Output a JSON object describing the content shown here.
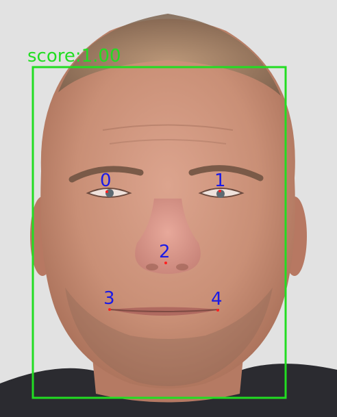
{
  "image": {
    "subject": "photo of a man's face",
    "background_color": "#e2e2e2"
  },
  "detection": {
    "score_label": "score:1.00",
    "box_color": "#22dd22",
    "landmark_color": "#ff2020",
    "landmark_label_color": "#1a1ae6",
    "landmarks": [
      {
        "id": "0",
        "name": "right-eye"
      },
      {
        "id": "1",
        "name": "left-eye"
      },
      {
        "id": "2",
        "name": "nose-tip"
      },
      {
        "id": "3",
        "name": "mouth-right-corner"
      },
      {
        "id": "4",
        "name": "mouth-left-corner"
      }
    ]
  }
}
